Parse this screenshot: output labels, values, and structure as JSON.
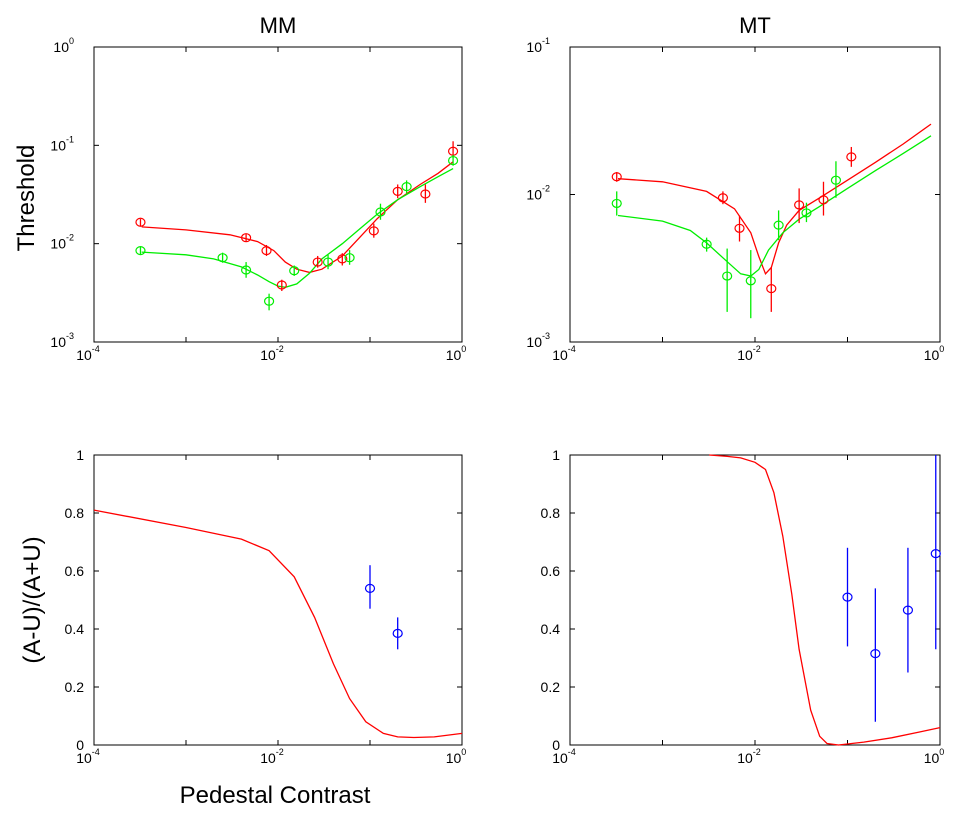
{
  "figure": {
    "ylabel_top": "Threshold",
    "ylabel_bottom": "(A-U)/(A+U)",
    "xlabel": "Pedestal Contrast"
  },
  "chart_data": [
    {
      "id": "mm_threshold",
      "type": "line",
      "title": "MM",
      "xscale": "log",
      "yscale": "log",
      "xlim": [
        0.0001,
        1
      ],
      "ylim": [
        0.001,
        1
      ],
      "xticks": [
        {
          "base": "10",
          "exp": "-4",
          "value": 0.0001
        },
        {
          "base": "10",
          "exp": "-2",
          "value": 0.01
        },
        {
          "base": "10",
          "exp": "0",
          "value": 1
        }
      ],
      "yticks": [
        {
          "base": "10",
          "exp": "-3",
          "value": 0.001
        },
        {
          "base": "10",
          "exp": "-2",
          "value": 0.01
        },
        {
          "base": "10",
          "exp": "-1",
          "value": 0.1
        },
        {
          "base": "10",
          "exp": "0",
          "value": 1
        }
      ],
      "series": [
        {
          "color": "#ff0000",
          "kind": "curve",
          "x": [
            0.00033,
            0.001,
            0.003,
            0.006,
            0.009,
            0.012,
            0.016,
            0.022,
            0.03,
            0.05,
            0.08,
            0.12,
            0.2,
            0.35,
            0.55,
            0.8
          ],
          "y": [
            0.0148,
            0.0138,
            0.0123,
            0.0105,
            0.0085,
            0.0065,
            0.0055,
            0.0051,
            0.0055,
            0.0075,
            0.012,
            0.018,
            0.028,
            0.04,
            0.052,
            0.068
          ]
        },
        {
          "color": "#00ee00",
          "kind": "curve",
          "x": [
            0.00033,
            0.001,
            0.002,
            0.004,
            0.006,
            0.008,
            0.01,
            0.012,
            0.016,
            0.022,
            0.03,
            0.05,
            0.08,
            0.12,
            0.2,
            0.35,
            0.55,
            0.8
          ],
          "y": [
            0.0082,
            0.0077,
            0.007,
            0.0058,
            0.0048,
            0.0041,
            0.0037,
            0.0036,
            0.0039,
            0.005,
            0.007,
            0.01,
            0.0145,
            0.02,
            0.028,
            0.038,
            0.048,
            0.058
          ]
        },
        {
          "color": "#ff0000",
          "kind": "points",
          "x": [
            0.00032,
            0.0045,
            0.0075,
            0.011,
            0.027,
            0.05,
            0.11,
            0.2,
            0.4,
            0.8
          ],
          "y": [
            0.0165,
            0.0115,
            0.0085,
            0.0038,
            0.0065,
            0.007,
            0.0135,
            0.034,
            0.032,
            0.087
          ],
          "err_lo": [
            0.015,
            0.0105,
            0.0075,
            0.0033,
            0.0057,
            0.006,
            0.0115,
            0.029,
            0.026,
            0.075
          ],
          "err_hi": [
            0.0178,
            0.0125,
            0.0097,
            0.0043,
            0.0075,
            0.008,
            0.016,
            0.04,
            0.04,
            0.11
          ]
        },
        {
          "color": "#00ee00",
          "kind": "points",
          "x": [
            0.00032,
            0.0025,
            0.0045,
            0.008,
            0.015,
            0.035,
            0.06,
            0.13,
            0.25,
            0.8
          ],
          "y": [
            0.0085,
            0.0072,
            0.0054,
            0.0026,
            0.0053,
            0.0065,
            0.0072,
            0.021,
            0.038,
            0.07
          ],
          "err_lo": [
            0.0078,
            0.0064,
            0.0045,
            0.0021,
            0.0047,
            0.0055,
            0.0061,
            0.0175,
            0.0325,
            0.062
          ],
          "err_hi": [
            0.0093,
            0.0081,
            0.0065,
            0.0031,
            0.006,
            0.0077,
            0.0086,
            0.0255,
            0.044,
            0.08
          ]
        }
      ]
    },
    {
      "id": "mt_threshold",
      "type": "line",
      "title": "MT",
      "xscale": "log",
      "yscale": "log",
      "xlim": [
        0.0001,
        1
      ],
      "ylim": [
        0.001,
        0.1
      ],
      "xticks": [
        {
          "base": "10",
          "exp": "-4",
          "value": 0.0001
        },
        {
          "base": "10",
          "exp": "-2",
          "value": 0.01
        },
        {
          "base": "10",
          "exp": "0",
          "value": 1
        }
      ],
      "yticks": [
        {
          "base": "10",
          "exp": "-3",
          "value": 0.001
        },
        {
          "base": "10",
          "exp": "-2",
          "value": 0.01
        },
        {
          "base": "10",
          "exp": "-1",
          "value": 0.1
        }
      ],
      "series": [
        {
          "color": "#ff0000",
          "kind": "curve",
          "x": [
            0.00033,
            0.001,
            0.003,
            0.006,
            0.009,
            0.011,
            0.013,
            0.015,
            0.018,
            0.022,
            0.03,
            0.05,
            0.1,
            0.2,
            0.4,
            0.8
          ],
          "y": [
            0.0128,
            0.0122,
            0.0105,
            0.008,
            0.0055,
            0.0038,
            0.0029,
            0.0032,
            0.0047,
            0.0062,
            0.0078,
            0.0095,
            0.0125,
            0.0165,
            0.022,
            0.03
          ]
        },
        {
          "color": "#00ee00",
          "kind": "curve",
          "x": [
            0.00033,
            0.001,
            0.002,
            0.003,
            0.005,
            0.007,
            0.009,
            0.011,
            0.014,
            0.02,
            0.03,
            0.05,
            0.1,
            0.2,
            0.4,
            0.8
          ],
          "y": [
            0.0072,
            0.0066,
            0.0057,
            0.0047,
            0.0035,
            0.0029,
            0.0028,
            0.0031,
            0.0042,
            0.0055,
            0.0068,
            0.0083,
            0.011,
            0.0145,
            0.019,
            0.025
          ]
        },
        {
          "color": "#ff0000",
          "kind": "points",
          "x": [
            0.00032,
            0.0045,
            0.0068,
            0.015,
            0.03,
            0.055,
            0.11
          ],
          "y": [
            0.0132,
            0.0095,
            0.0059,
            0.0023,
            0.0085,
            0.0092,
            0.018
          ],
          "err_lo": [
            0.0122,
            0.0086,
            0.0048,
            0.0016,
            0.0064,
            0.0072,
            0.0154
          ],
          "err_hi": [
            0.0142,
            0.0105,
            0.0072,
            0.0032,
            0.011,
            0.0122,
            0.021
          ]
        },
        {
          "color": "#00ee00",
          "kind": "points",
          "x": [
            0.00032,
            0.003,
            0.005,
            0.009,
            0.018,
            0.036,
            0.075
          ],
          "y": [
            0.0087,
            0.0046,
            0.0028,
            0.0026,
            0.0062,
            0.0075,
            0.0125
          ],
          "err_lo": [
            0.0072,
            0.0041,
            0.0016,
            0.00145,
            0.0049,
            0.0065,
            0.0095
          ],
          "err_hi": [
            0.0105,
            0.0051,
            0.0043,
            0.0042,
            0.0078,
            0.0088,
            0.0168
          ]
        }
      ]
    },
    {
      "id": "mm_ratio",
      "type": "line",
      "xscale": "log",
      "yscale": "linear",
      "xlim": [
        0.0001,
        1
      ],
      "ylim": [
        0,
        1
      ],
      "xticks": [
        {
          "base": "10",
          "exp": "-4",
          "value": 0.0001
        },
        {
          "base": "10",
          "exp": "-2",
          "value": 0.01
        },
        {
          "base": "10",
          "exp": "0",
          "value": 1
        }
      ],
      "yticks": [
        {
          "label": "0",
          "value": 0
        },
        {
          "label": "0.2",
          "value": 0.2
        },
        {
          "label": "0.4",
          "value": 0.4
        },
        {
          "label": "0.6",
          "value": 0.6
        },
        {
          "label": "0.8",
          "value": 0.8
        },
        {
          "label": "1",
          "value": 1
        }
      ],
      "series": [
        {
          "color": "#ff0000",
          "kind": "curve",
          "x": [
            0.0001,
            0.001,
            0.004,
            0.008,
            0.015,
            0.025,
            0.04,
            0.06,
            0.09,
            0.14,
            0.2,
            0.3,
            0.5,
            1
          ],
          "y": [
            0.81,
            0.75,
            0.71,
            0.67,
            0.58,
            0.44,
            0.28,
            0.16,
            0.08,
            0.04,
            0.028,
            0.026,
            0.028,
            0.04
          ]
        },
        {
          "color": "#0000ff",
          "kind": "points",
          "x": [
            0.1,
            0.2
          ],
          "y": [
            0.54,
            0.385
          ],
          "err_lo": [
            0.47,
            0.33
          ],
          "err_hi": [
            0.62,
            0.44
          ]
        }
      ]
    },
    {
      "id": "mt_ratio",
      "type": "line",
      "xscale": "log",
      "yscale": "linear",
      "xlim": [
        0.0001,
        1
      ],
      "ylim": [
        0,
        1
      ],
      "xticks": [
        {
          "base": "10",
          "exp": "-4",
          "value": 0.0001
        },
        {
          "base": "10",
          "exp": "-2",
          "value": 0.01
        },
        {
          "base": "10",
          "exp": "0",
          "value": 1
        }
      ],
      "yticks": [
        {
          "label": "0",
          "value": 0
        },
        {
          "label": "0.2",
          "value": 0.2
        },
        {
          "label": "0.4",
          "value": 0.4
        },
        {
          "label": "0.6",
          "value": 0.6
        },
        {
          "label": "0.8",
          "value": 0.8
        },
        {
          "label": "1",
          "value": 1
        }
      ],
      "series": [
        {
          "color": "#ff0000",
          "kind": "curve",
          "x": [
            0.0032,
            0.005,
            0.007,
            0.01,
            0.013,
            0.016,
            0.02,
            0.025,
            0.03,
            0.04,
            0.05,
            0.06,
            0.08,
            0.15,
            0.3,
            0.6,
            1
          ],
          "y": [
            1.0,
            0.995,
            0.99,
            0.975,
            0.95,
            0.87,
            0.72,
            0.52,
            0.33,
            0.12,
            0.03,
            0.005,
            0.0,
            0.01,
            0.025,
            0.045,
            0.06
          ]
        },
        {
          "color": "#0000ff",
          "kind": "points",
          "x": [
            0.1,
            0.2,
            0.45,
            0.9
          ],
          "y": [
            0.51,
            0.315,
            0.465,
            0.66
          ],
          "err_lo": [
            0.34,
            0.08,
            0.25,
            0.33
          ],
          "err_hi": [
            0.68,
            0.54,
            0.68,
            1.0
          ]
        }
      ]
    }
  ]
}
